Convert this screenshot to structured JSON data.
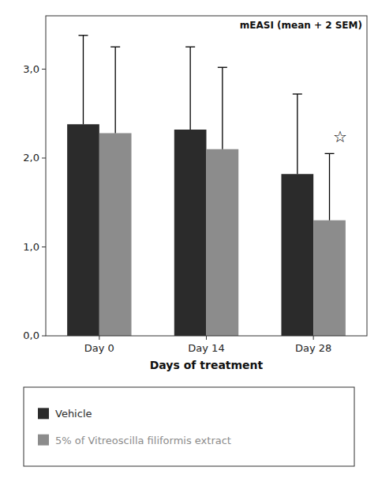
{
  "chart_data": {
    "type": "bar",
    "title": "mEASI (mean + 2 SEM)",
    "xlabel": "Days of treatment",
    "categories": [
      "Day 0",
      "Day 14",
      "Day 28"
    ],
    "series": [
      {
        "name": "Vehicle",
        "color": "#2b2b2b",
        "values": [
          2.38,
          2.32,
          1.82
        ],
        "error_top": [
          3.38,
          3.25,
          2.72
        ]
      },
      {
        "name": "5% of Vitreoscilla filiformis extract",
        "color": "#8c8c8c",
        "values": [
          2.28,
          2.1,
          1.3
        ],
        "error_top": [
          3.25,
          3.02,
          2.05
        ]
      }
    ],
    "ylim": [
      0.0,
      3.6
    ],
    "yticks": [
      {
        "value": 0.0,
        "label": "0,0"
      },
      {
        "value": 1.0,
        "label": "1,0"
      },
      {
        "value": 2.0,
        "label": "2,0"
      },
      {
        "value": 3.0,
        "label": "3,0"
      }
    ],
    "annotations": [
      {
        "text": "☆",
        "x": "Day 28",
        "y": 2.18
      }
    ],
    "grid": false,
    "legend": "bottom"
  }
}
